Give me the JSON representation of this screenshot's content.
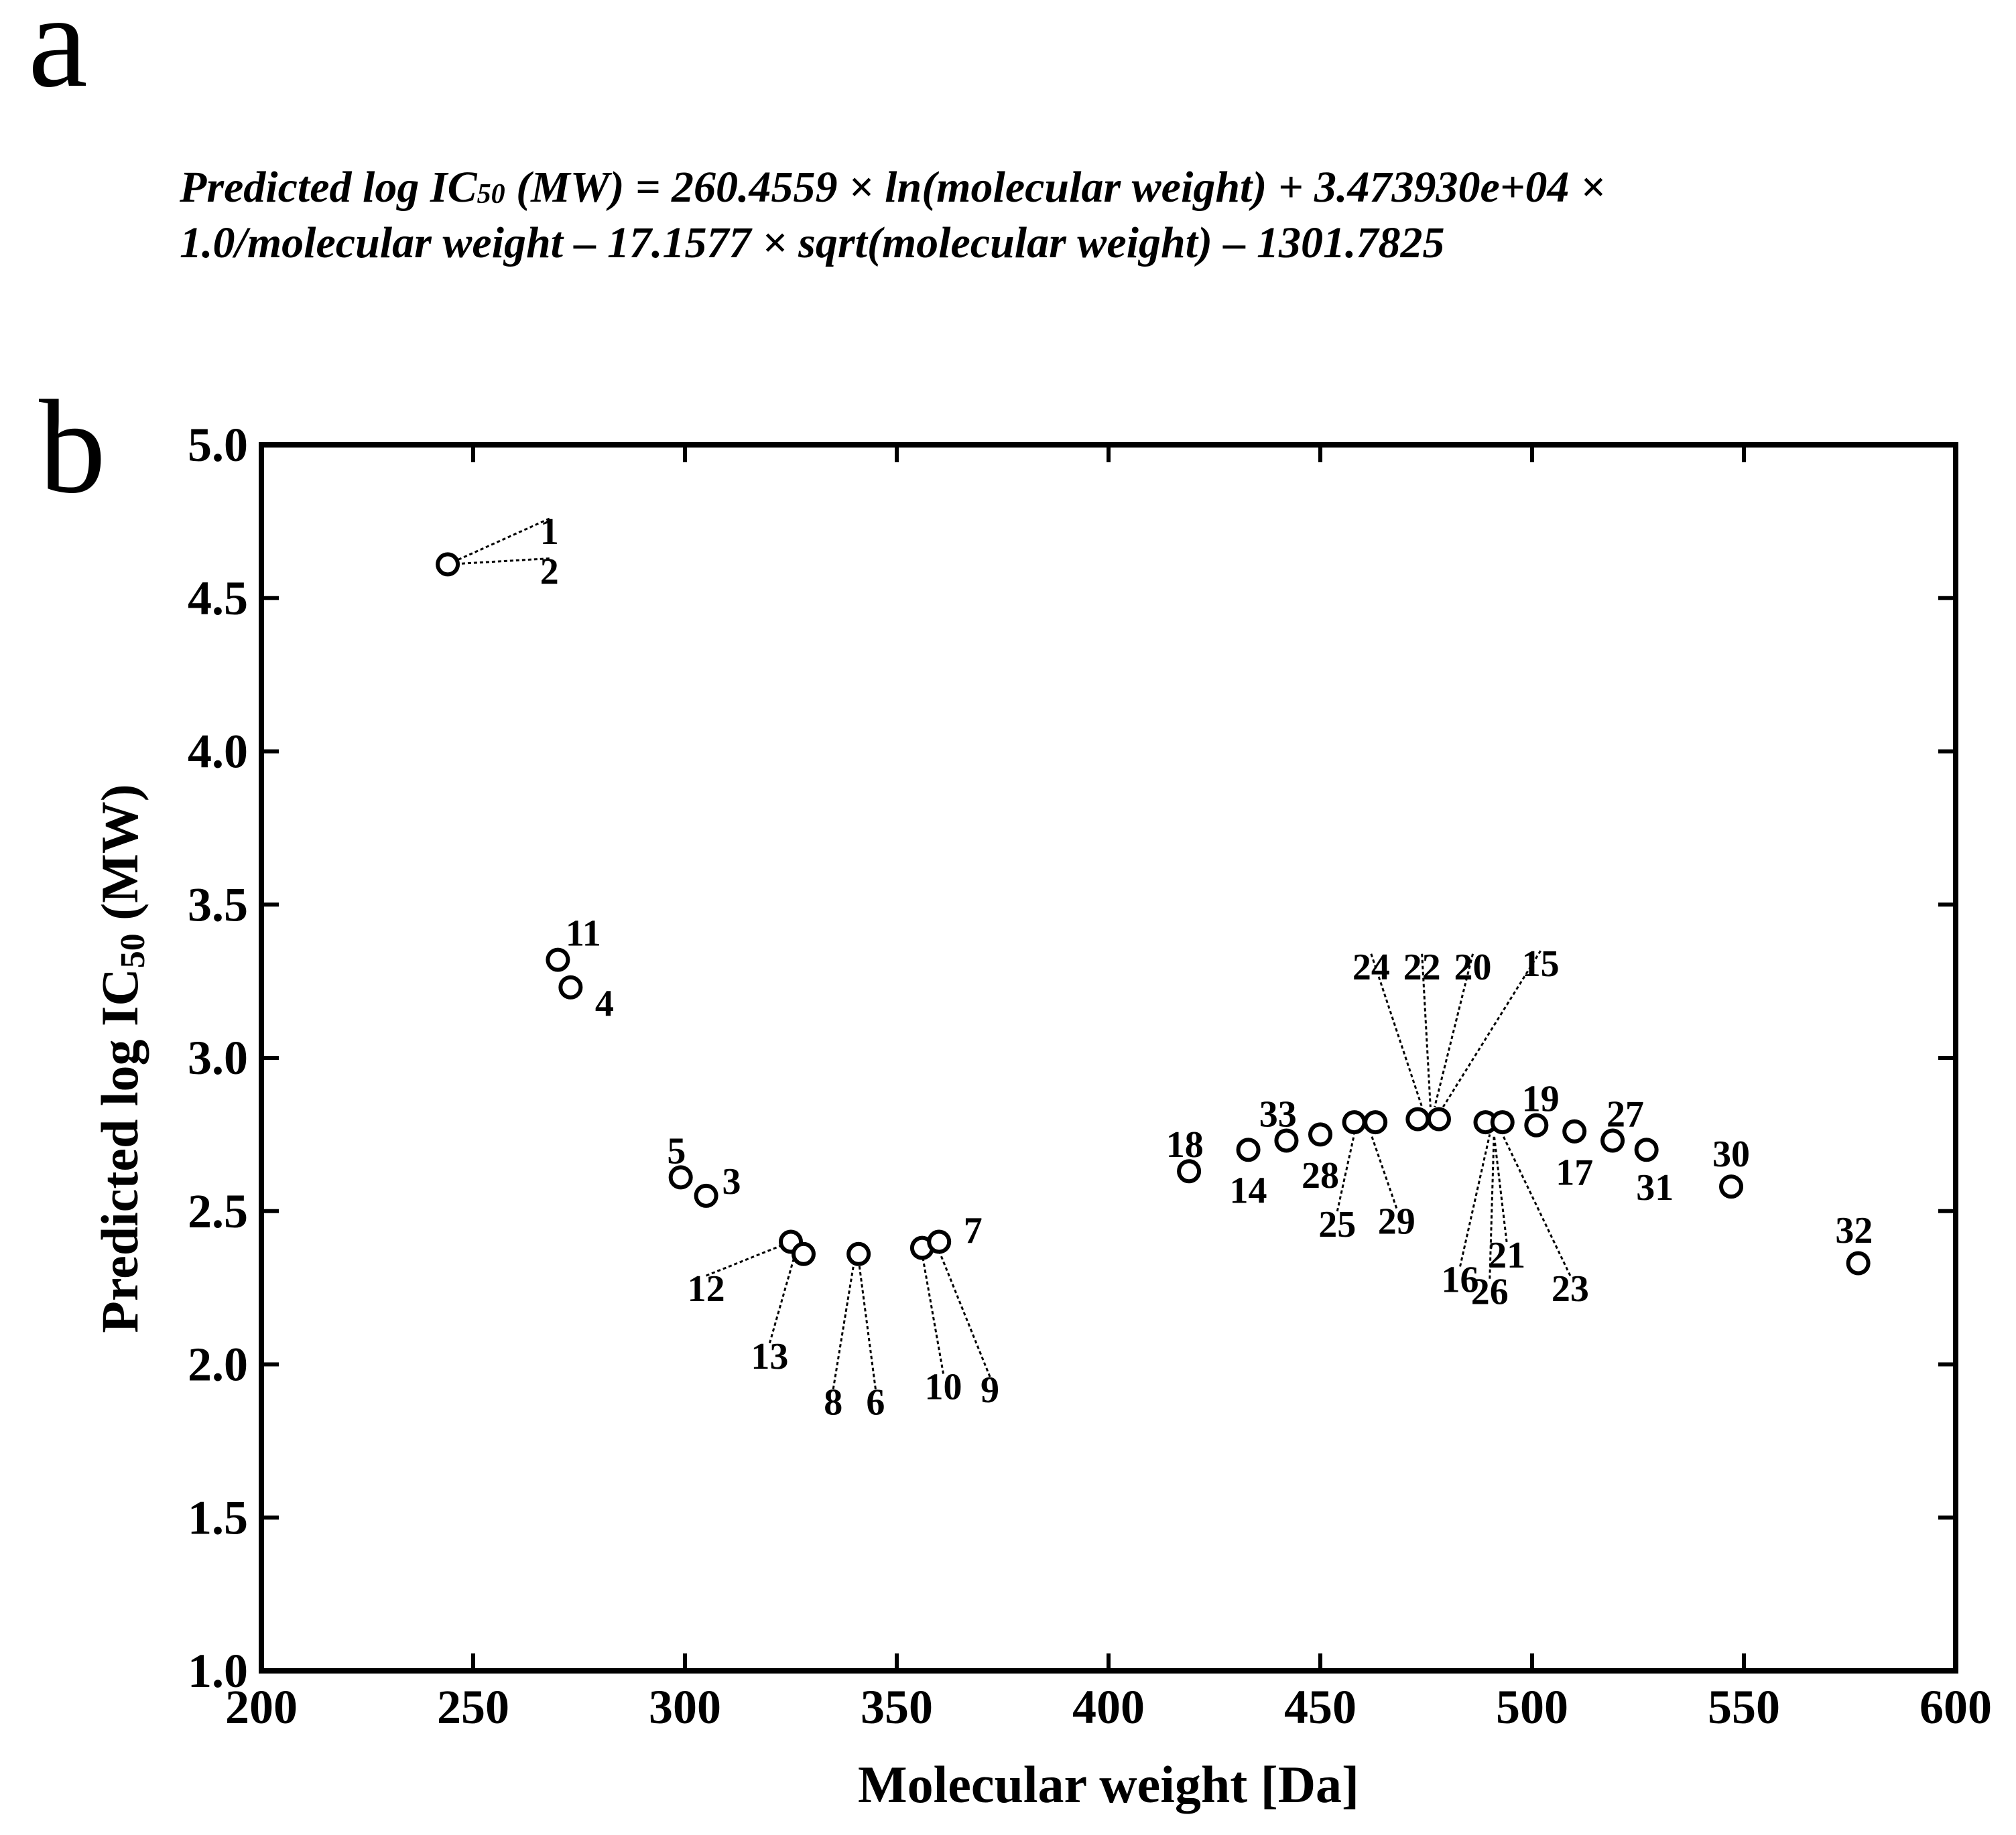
{
  "panel_labels": {
    "a": "a",
    "b": "b"
  },
  "equation": {
    "line1_prefix": "Predicted log IC",
    "line1_sub": "50",
    "line1_rest": " (MW) = 260.4559 × ln(molecular weight) + 3.473930e+04 ×",
    "line2": "1.0/molecular weight – 17.1577 × sqrt(molecular weight) – 1301.7825"
  },
  "chart_data": {
    "type": "scatter",
    "title": "",
    "xlabel": "Molecular weight [Da]",
    "ylabel_prefix": "Predicted log IC",
    "ylabel_sub": "50",
    "ylabel_suffix": " (MW)",
    "xlim": [
      200,
      600
    ],
    "ylim": [
      1.0,
      5.0
    ],
    "xticks": [
      200,
      250,
      300,
      350,
      400,
      450,
      500,
      550,
      600
    ],
    "yticks": [
      1.0,
      1.5,
      2.0,
      2.5,
      3.0,
      3.5,
      4.0,
      4.5,
      5.0
    ],
    "points": [
      {
        "mw": 244,
        "y": 4.61
      },
      {
        "mw": 270,
        "y": 3.32
      },
      {
        "mw": 273,
        "y": 3.23
      },
      {
        "mw": 299,
        "y": 2.61
      },
      {
        "mw": 305,
        "y": 2.55
      },
      {
        "mw": 325,
        "y": 2.4
      },
      {
        "mw": 328,
        "y": 2.36
      },
      {
        "mw": 341,
        "y": 2.36
      },
      {
        "mw": 356,
        "y": 2.38
      },
      {
        "mw": 360,
        "y": 2.4
      },
      {
        "mw": 419,
        "y": 2.63
      },
      {
        "mw": 433,
        "y": 2.7
      },
      {
        "mw": 442,
        "y": 2.73
      },
      {
        "mw": 450,
        "y": 2.75
      },
      {
        "mw": 458,
        "y": 2.79
      },
      {
        "mw": 463,
        "y": 2.79
      },
      {
        "mw": 473,
        "y": 2.8
      },
      {
        "mw": 478,
        "y": 2.8
      },
      {
        "mw": 489,
        "y": 2.79
      },
      {
        "mw": 493,
        "y": 2.79
      },
      {
        "mw": 501,
        "y": 2.78
      },
      {
        "mw": 510,
        "y": 2.76
      },
      {
        "mw": 519,
        "y": 2.73
      },
      {
        "mw": 527,
        "y": 2.7
      },
      {
        "mw": 547,
        "y": 2.58
      },
      {
        "mw": 577,
        "y": 2.33
      }
    ],
    "labels": [
      {
        "text": "1",
        "mw": 268,
        "y": 4.72,
        "to": [
          244,
          4.61
        ]
      },
      {
        "text": "2",
        "mw": 268,
        "y": 4.59,
        "to": [
          244,
          4.61
        ]
      },
      {
        "text": "11",
        "mw": 276,
        "y": 3.41
      },
      {
        "text": "4",
        "mw": 281,
        "y": 3.18
      },
      {
        "text": "5",
        "mw": 298,
        "y": 2.7
      },
      {
        "text": "3",
        "mw": 311,
        "y": 2.6
      },
      {
        "text": "7",
        "mw": 368,
        "y": 2.44
      },
      {
        "text": "12",
        "mw": 305,
        "y": 2.25,
        "to": [
          325,
          2.4
        ]
      },
      {
        "text": "13",
        "mw": 320,
        "y": 2.03,
        "to": [
          326,
          2.36
        ]
      },
      {
        "text": "8",
        "mw": 335,
        "y": 1.88,
        "to": [
          340,
          2.34
        ]
      },
      {
        "text": "6",
        "mw": 345,
        "y": 1.88,
        "to": [
          341,
          2.34
        ]
      },
      {
        "text": "10",
        "mw": 361,
        "y": 1.93,
        "to": [
          356,
          2.36
        ]
      },
      {
        "text": "9",
        "mw": 372,
        "y": 1.92,
        "to": [
          360,
          2.37
        ]
      },
      {
        "text": "18",
        "mw": 418,
        "y": 2.72
      },
      {
        "text": "14",
        "mw": 433,
        "y": 2.57
      },
      {
        "text": "33",
        "mw": 440,
        "y": 2.82
      },
      {
        "text": "28",
        "mw": 450,
        "y": 2.62
      },
      {
        "text": "25",
        "mw": 454,
        "y": 2.46,
        "to": [
          458,
          2.75
        ]
      },
      {
        "text": "29",
        "mw": 468,
        "y": 2.47,
        "to": [
          462,
          2.75
        ]
      },
      {
        "text": "24",
        "mw": 462,
        "y": 3.3,
        "to": [
          474,
          2.84
        ]
      },
      {
        "text": "22",
        "mw": 474,
        "y": 3.3,
        "to": [
          476,
          2.84
        ]
      },
      {
        "text": "20",
        "mw": 486,
        "y": 3.3,
        "to": [
          477,
          2.84
        ]
      },
      {
        "text": "15",
        "mw": 502,
        "y": 3.31,
        "to": [
          479,
          2.84
        ]
      },
      {
        "text": "19",
        "mw": 502,
        "y": 2.87
      },
      {
        "text": "27",
        "mw": 522,
        "y": 2.82
      },
      {
        "text": "17",
        "mw": 510,
        "y": 2.63
      },
      {
        "text": "31",
        "mw": 529,
        "y": 2.58
      },
      {
        "text": "30",
        "mw": 547,
        "y": 2.69
      },
      {
        "text": "32",
        "mw": 576,
        "y": 2.44
      },
      {
        "text": "16",
        "mw": 483,
        "y": 2.28,
        "to": [
          490,
          2.75
        ]
      },
      {
        "text": "21",
        "mw": 494,
        "y": 2.36,
        "to": [
          491,
          2.75
        ]
      },
      {
        "text": "26",
        "mw": 490,
        "y": 2.24,
        "to": [
          491,
          2.75
        ]
      },
      {
        "text": "23",
        "mw": 509,
        "y": 2.25,
        "to": [
          493,
          2.75
        ]
      }
    ]
  }
}
